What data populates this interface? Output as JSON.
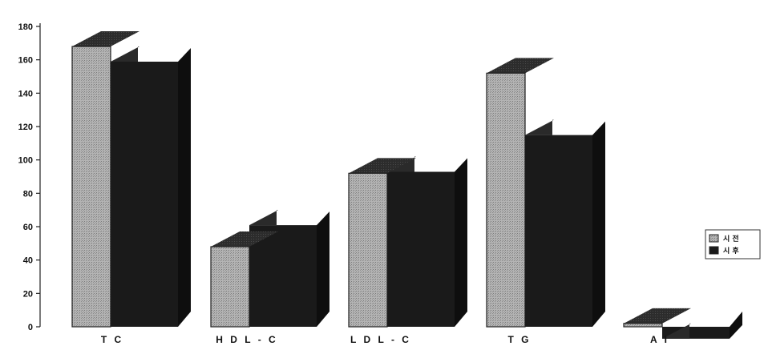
{
  "chart_data": {
    "type": "bar",
    "style": "3d-clustered",
    "categories": [
      "TC",
      "HDL-C",
      "LDL-C",
      "TG",
      "AI"
    ],
    "category_labels": [
      "T C",
      "H D L - C",
      "L D L - C",
      "T G",
      "A I"
    ],
    "series": [
      {
        "name": "시 전",
        "values": [
          168,
          48,
          92,
          152,
          2
        ],
        "color": "#a8a8a8"
      },
      {
        "name": "시 후",
        "values": [
          168,
          70,
          102,
          124,
          2
        ],
        "color": "#1a1a1a"
      }
    ],
    "ylim": [
      0,
      180
    ],
    "yticks": [
      0,
      20,
      40,
      60,
      80,
      100,
      120,
      140,
      160,
      180
    ],
    "grid": false,
    "legend_position": "right"
  },
  "colors": {
    "front_light": "#a8a8a8",
    "dark_series": "#1a1a1a",
    "top_face": "#2a2a2a",
    "side_face": "#0e0e0e",
    "axis": "#222222"
  }
}
